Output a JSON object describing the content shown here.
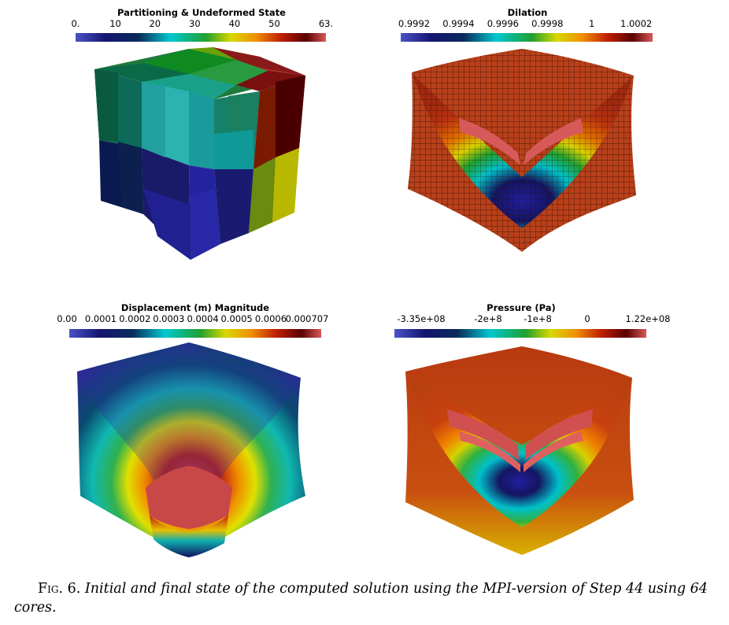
{
  "panels": [
    {
      "id": "partition",
      "colorbar_title": "Partitioning & Undeformed State",
      "ticks": [
        {
          "label": "0.",
          "pos": 0.0
        },
        {
          "label": "10",
          "pos": 0.159
        },
        {
          "label": "20",
          "pos": 0.317
        },
        {
          "label": "30",
          "pos": 0.476
        },
        {
          "label": "40",
          "pos": 0.635
        },
        {
          "label": "50",
          "pos": 0.794
        },
        {
          "label": "63.",
          "pos": 1.0
        }
      ]
    },
    {
      "id": "dilation",
      "colorbar_title": "Dilation",
      "ticks": [
        {
          "label": "0.9992",
          "pos": 0.0
        },
        {
          "label": "0.9994",
          "pos": 0.185
        },
        {
          "label": "0.9996",
          "pos": 0.37
        },
        {
          "label": "0.9998",
          "pos": 0.555
        },
        {
          "label": "1",
          "pos": 0.74
        },
        {
          "label": "1.0002",
          "pos": 0.925
        }
      ]
    },
    {
      "id": "displacement",
      "colorbar_title": "Displacement (m) Magnitude",
      "ticks": [
        {
          "label": "0.00",
          "pos": 0.0
        },
        {
          "label": "0.0001",
          "pos": 0.141
        },
        {
          "label": "0.0002",
          "pos": 0.283
        },
        {
          "label": "0.0003",
          "pos": 0.424
        },
        {
          "label": "0.0004",
          "pos": 0.566
        },
        {
          "label": "0.0005",
          "pos": 0.707
        },
        {
          "label": "0.0006",
          "pos": 0.849
        },
        {
          "label": "0.000707",
          "pos": 1.0
        }
      ]
    },
    {
      "id": "pressure",
      "colorbar_title": "Pressure (Pa)",
      "ticks": [
        {
          "label": "-3.35e+08",
          "pos": 0.0
        },
        {
          "label": "-2e+8",
          "pos": 0.295
        },
        {
          "label": "-1e+8",
          "pos": 0.514
        },
        {
          "label": "0",
          "pos": 0.733
        },
        {
          "label": "1.22e+08",
          "pos": 1.0
        }
      ]
    }
  ],
  "colormap": [
    "#3b4cc0",
    "#1a1a7a",
    "#0a0a40",
    "#00c8d8",
    "#00b060",
    "#e8e800",
    "#f08000",
    "#c02000",
    "#600000",
    "#c84848"
  ],
  "caption": {
    "label": "Fig. 6.",
    "text": "Initial and final state of the computed solution using the MPI-version of Step 44 using 64 cores."
  }
}
